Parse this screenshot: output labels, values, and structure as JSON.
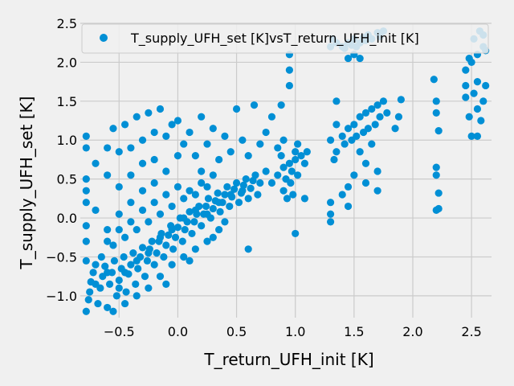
{
  "chart_data": {
    "type": "scatter",
    "title": "",
    "xlabel": "T_return_UFH_init [K]",
    "ylabel": "T_supply_UFH_set [K]",
    "xlim": [
      -0.83,
      2.67
    ],
    "ylim": [
      -1.28,
      2.5
    ],
    "xticks": [
      -0.5,
      0.0,
      0.5,
      1.0,
      1.5,
      2.0,
      2.5
    ],
    "xtick_labels": [
      "−0.5",
      "0.0",
      "0.5",
      "1.0",
      "1.5",
      "2.0",
      "2.5"
    ],
    "yticks": [
      -1.0,
      -0.5,
      0.0,
      0.5,
      1.0,
      1.5,
      2.0,
      2.5
    ],
    "ytick_labels": [
      "−1.0",
      "−0.5",
      "0.0",
      "0.5",
      "1.0",
      "1.5",
      "2.0",
      "2.5"
    ],
    "grid": true,
    "legend_position": "top-right",
    "series_color": "#008fd5",
    "series": [
      {
        "name": "T_supply_UFH_set [K]vsT_return_UFH_init [K]",
        "points": [
          [
            -0.78,
            -1.2
          ],
          [
            -0.76,
            -1.05
          ],
          [
            -0.75,
            -0.95
          ],
          [
            -0.74,
            -0.82
          ],
          [
            -0.72,
            -0.7
          ],
          [
            -0.7,
            -0.6
          ],
          [
            -0.68,
            -1.1
          ],
          [
            -0.66,
            -0.9
          ],
          [
            -0.64,
            -0.75
          ],
          [
            -0.62,
            -0.62
          ],
          [
            -0.6,
            -1.15
          ],
          [
            -0.58,
            -0.85
          ],
          [
            -0.56,
            -0.7
          ],
          [
            -0.54,
            -0.55
          ],
          [
            -0.52,
            -1.0
          ],
          [
            -0.5,
            -0.8
          ],
          [
            -0.48,
            -0.65
          ],
          [
            -0.46,
            -0.5
          ],
          [
            -0.44,
            -0.95
          ],
          [
            -0.42,
            -0.72
          ],
          [
            -0.4,
            -0.6
          ],
          [
            -0.38,
            -0.45
          ],
          [
            -0.36,
            -0.85
          ],
          [
            -0.34,
            -0.65
          ],
          [
            -0.32,
            -0.5
          ],
          [
            -0.3,
            -0.38
          ],
          [
            -0.28,
            -0.75
          ],
          [
            -0.26,
            -0.55
          ],
          [
            -0.24,
            -0.4
          ],
          [
            -0.22,
            -0.3
          ],
          [
            -0.2,
            -0.6
          ],
          [
            -0.18,
            -0.45
          ],
          [
            -0.16,
            -0.3
          ],
          [
            -0.14,
            -0.2
          ],
          [
            -0.12,
            -0.5
          ],
          [
            -0.1,
            -0.35
          ],
          [
            -0.08,
            -0.22
          ],
          [
            -0.06,
            -0.1
          ],
          [
            -0.04,
            -0.4
          ],
          [
            -0.02,
            -0.25
          ],
          [
            0.0,
            -0.12
          ],
          [
            0.02,
            0.0
          ],
          [
            0.04,
            -0.3
          ],
          [
            0.06,
            -0.15
          ],
          [
            0.08,
            -0.05
          ],
          [
            0.1,
            0.08
          ],
          [
            0.12,
            -0.2
          ],
          [
            0.14,
            -0.05
          ],
          [
            0.16,
            0.05
          ],
          [
            0.18,
            0.15
          ],
          [
            0.2,
            -0.1
          ],
          [
            0.22,
            0.05
          ],
          [
            0.24,
            0.15
          ],
          [
            0.26,
            0.25
          ],
          [
            0.28,
            0.0
          ],
          [
            0.3,
            0.12
          ],
          [
            0.32,
            0.22
          ],
          [
            0.34,
            0.32
          ],
          [
            0.36,
            0.08
          ],
          [
            0.38,
            0.2
          ],
          [
            0.4,
            0.3
          ],
          [
            0.42,
            0.4
          ],
          [
            0.44,
            0.15
          ],
          [
            0.46,
            0.27
          ],
          [
            0.48,
            0.37
          ],
          [
            0.5,
            0.45
          ],
          [
            0.52,
            0.2
          ],
          [
            0.54,
            0.32
          ],
          [
            0.56,
            0.42
          ],
          [
            0.58,
            0.5
          ],
          [
            0.6,
            0.25
          ],
          [
            0.62,
            0.38
          ],
          [
            0.64,
            0.48
          ],
          [
            0.66,
            0.55
          ],
          [
            0.68,
            0.3
          ],
          [
            0.7,
            0.45
          ],
          [
            -0.7,
            -0.85
          ],
          [
            -0.6,
            -0.7
          ],
          [
            -0.5,
            -0.9
          ],
          [
            -0.45,
            -0.7
          ],
          [
            -0.35,
            -0.55
          ],
          [
            -0.25,
            -0.45
          ],
          [
            -0.15,
            -0.25
          ],
          [
            -0.05,
            -0.15
          ],
          [
            0.05,
            0.0
          ],
          [
            0.15,
            0.1
          ],
          [
            0.25,
            0.05
          ],
          [
            0.35,
            0.2
          ],
          [
            0.45,
            0.3
          ],
          [
            0.55,
            0.35
          ],
          [
            -0.65,
            -0.5
          ],
          [
            -0.55,
            -0.35
          ],
          [
            -0.45,
            -0.25
          ],
          [
            -0.35,
            -0.15
          ],
          [
            -0.25,
            -0.05
          ],
          [
            -0.15,
            0.05
          ],
          [
            -0.05,
            0.15
          ],
          [
            0.05,
            0.25
          ],
          [
            0.15,
            0.3
          ],
          [
            0.25,
            0.4
          ],
          [
            -0.55,
            -1.2
          ],
          [
            -0.45,
            -1.1
          ],
          [
            -0.35,
            -1.0
          ],
          [
            -0.25,
            -0.9
          ],
          [
            -0.15,
            -0.75
          ],
          [
            -0.05,
            -0.6
          ],
          [
            0.05,
            -0.5
          ],
          [
            0.15,
            -0.4
          ],
          [
            0.25,
            -0.3
          ],
          [
            0.35,
            -0.15
          ],
          [
            -0.6,
            -0.3
          ],
          [
            -0.5,
            -0.15
          ],
          [
            -0.4,
            -0.05
          ],
          [
            -0.3,
            0.1
          ],
          [
            -0.2,
            0.2
          ],
          [
            -0.1,
            0.3
          ],
          [
            0.0,
            0.4
          ],
          [
            0.1,
            0.35
          ],
          [
            0.2,
            0.45
          ],
          [
            0.3,
            0.55
          ],
          [
            -0.78,
            0.5
          ],
          [
            -0.78,
            0.35
          ],
          [
            -0.78,
            0.2
          ],
          [
            -0.78,
            -0.1
          ],
          [
            -0.78,
            -0.3
          ],
          [
            -0.78,
            -0.55
          ],
          [
            -0.78,
            0.9
          ],
          [
            -0.78,
            1.05
          ],
          [
            -0.7,
            0.7
          ],
          [
            -0.7,
            0.1
          ],
          [
            -0.6,
            0.9
          ],
          [
            -0.6,
            0.55
          ],
          [
            -0.6,
            -0.15
          ],
          [
            -0.55,
            1.15
          ],
          [
            -0.5,
            0.85
          ],
          [
            -0.5,
            0.4
          ],
          [
            -0.5,
            0.05
          ],
          [
            -0.45,
            1.2
          ],
          [
            -0.4,
            0.9
          ],
          [
            -0.4,
            0.55
          ],
          [
            -0.4,
            0.2
          ],
          [
            -0.35,
            1.3
          ],
          [
            -0.3,
            1.0
          ],
          [
            -0.3,
            0.7
          ],
          [
            -0.3,
            0.35
          ],
          [
            -0.25,
            1.35
          ],
          [
            -0.2,
            1.1
          ],
          [
            -0.2,
            0.75
          ],
          [
            -0.2,
            0.45
          ],
          [
            -0.15,
            1.4
          ],
          [
            -0.1,
            1.05
          ],
          [
            -0.1,
            0.6
          ],
          [
            -0.05,
            1.2
          ],
          [
            0.0,
            1.25
          ],
          [
            0.0,
            0.8
          ],
          [
            0.05,
            0.95
          ],
          [
            0.1,
            1.1
          ],
          [
            0.15,
            0.8
          ],
          [
            0.2,
            1.3
          ],
          [
            0.2,
            0.6
          ],
          [
            0.25,
            0.95
          ],
          [
            0.3,
            1.15
          ],
          [
            0.35,
            0.75
          ],
          [
            0.4,
            1.05
          ],
          [
            0.45,
            0.85
          ],
          [
            0.5,
            1.4
          ],
          [
            0.55,
            1.0
          ],
          [
            0.6,
            0.8
          ],
          [
            0.65,
            1.45
          ],
          [
            0.7,
            0.95
          ],
          [
            0.75,
            1.1
          ],
          [
            0.8,
            1.3
          ],
          [
            0.85,
            0.9
          ],
          [
            0.9,
            1.0
          ],
          [
            0.6,
            -0.4
          ],
          [
            0.4,
            -0.05
          ],
          [
            0.3,
            -0.25
          ],
          [
            0.1,
            -0.55
          ],
          [
            -0.1,
            -0.85
          ],
          [
            0.75,
            0.6
          ],
          [
            0.8,
            0.45
          ],
          [
            0.85,
            0.55
          ],
          [
            0.9,
            0.65
          ],
          [
            0.92,
            0.5
          ],
          [
            0.95,
            0.7
          ],
          [
            0.97,
            0.6
          ],
          [
            1.0,
            0.75
          ],
          [
            1.02,
            0.55
          ],
          [
            1.05,
            0.8
          ],
          [
            1.08,
            0.7
          ],
          [
            1.1,
            0.85
          ],
          [
            0.88,
            0.8
          ],
          [
            0.9,
            0.35
          ],
          [
            0.93,
            0.25
          ],
          [
            0.96,
            0.45
          ],
          [
            0.98,
            0.3
          ],
          [
            1.0,
            0.85
          ],
          [
            1.02,
            0.95
          ],
          [
            0.88,
            1.45
          ],
          [
            0.95,
            1.7
          ],
          [
            0.95,
            1.9
          ],
          [
            0.95,
            2.1
          ],
          [
            1.0,
            -0.2
          ],
          [
            1.08,
            0.25
          ],
          [
            1.3,
            -0.05
          ],
          [
            1.3,
            0.05
          ],
          [
            1.3,
            0.2
          ],
          [
            1.3,
            1.0
          ],
          [
            1.33,
            0.75
          ],
          [
            1.35,
            1.2
          ],
          [
            1.35,
            1.5
          ],
          [
            1.35,
            0.85
          ],
          [
            1.4,
            1.05
          ],
          [
            1.42,
            0.95
          ],
          [
            1.45,
            1.15
          ],
          [
            1.48,
            1.0
          ],
          [
            1.5,
            1.2
          ],
          [
            1.52,
            1.05
          ],
          [
            1.55,
            1.3
          ],
          [
            1.58,
            1.1
          ],
          [
            1.6,
            1.35
          ],
          [
            1.62,
            1.15
          ],
          [
            1.65,
            1.4
          ],
          [
            1.68,
            1.2
          ],
          [
            1.7,
            1.45
          ],
          [
            1.72,
            1.3
          ],
          [
            1.75,
            1.5
          ],
          [
            1.78,
            1.35
          ],
          [
            1.55,
            0.85
          ],
          [
            1.6,
            0.7
          ],
          [
            1.65,
            0.95
          ],
          [
            1.7,
            0.6
          ],
          [
            1.5,
            0.55
          ],
          [
            1.45,
            0.4
          ],
          [
            1.4,
            0.3
          ],
          [
            1.45,
            0.15
          ],
          [
            1.6,
            0.45
          ],
          [
            1.7,
            0.35
          ],
          [
            1.3,
            2.2
          ],
          [
            1.32,
            2.3
          ],
          [
            1.35,
            2.25
          ],
          [
            1.4,
            2.2
          ],
          [
            1.42,
            2.18
          ],
          [
            1.45,
            2.25
          ],
          [
            1.48,
            2.22
          ],
          [
            1.5,
            2.3
          ],
          [
            1.52,
            2.2
          ],
          [
            1.55,
            2.25
          ],
          [
            1.58,
            2.32
          ],
          [
            1.6,
            2.28
          ],
          [
            1.62,
            2.35
          ],
          [
            1.65,
            2.3
          ],
          [
            1.7,
            2.38
          ],
          [
            1.72,
            2.33
          ],
          [
            1.75,
            2.4
          ],
          [
            1.45,
            2.05
          ],
          [
            1.5,
            2.1
          ],
          [
            1.55,
            2.05
          ],
          [
            1.9,
            1.52
          ],
          [
            1.88,
            1.3
          ],
          [
            1.85,
            1.15
          ],
          [
            2.18,
            1.78
          ],
          [
            2.2,
            1.5
          ],
          [
            2.2,
            1.35
          ],
          [
            2.22,
            1.12
          ],
          [
            2.2,
            0.65
          ],
          [
            2.2,
            0.55
          ],
          [
            2.22,
            0.32
          ],
          [
            2.2,
            0.1
          ],
          [
            2.22,
            0.12
          ],
          [
            2.45,
            1.55
          ],
          [
            2.48,
            1.3
          ],
          [
            2.5,
            1.05
          ],
          [
            2.45,
            1.7
          ],
          [
            2.52,
            1.6
          ],
          [
            2.55,
            1.4
          ],
          [
            2.58,
            1.25
          ],
          [
            2.6,
            1.5
          ],
          [
            2.55,
            1.75
          ],
          [
            2.62,
            1.7
          ],
          [
            2.55,
            1.05
          ],
          [
            2.45,
            1.9
          ],
          [
            2.5,
            2.0
          ],
          [
            2.55,
            2.1
          ],
          [
            2.6,
            2.2
          ],
          [
            2.48,
            2.05
          ],
          [
            2.52,
            2.3
          ],
          [
            2.57,
            2.4
          ],
          [
            2.6,
            2.35
          ],
          [
            2.62,
            2.15
          ]
        ]
      }
    ]
  }
}
